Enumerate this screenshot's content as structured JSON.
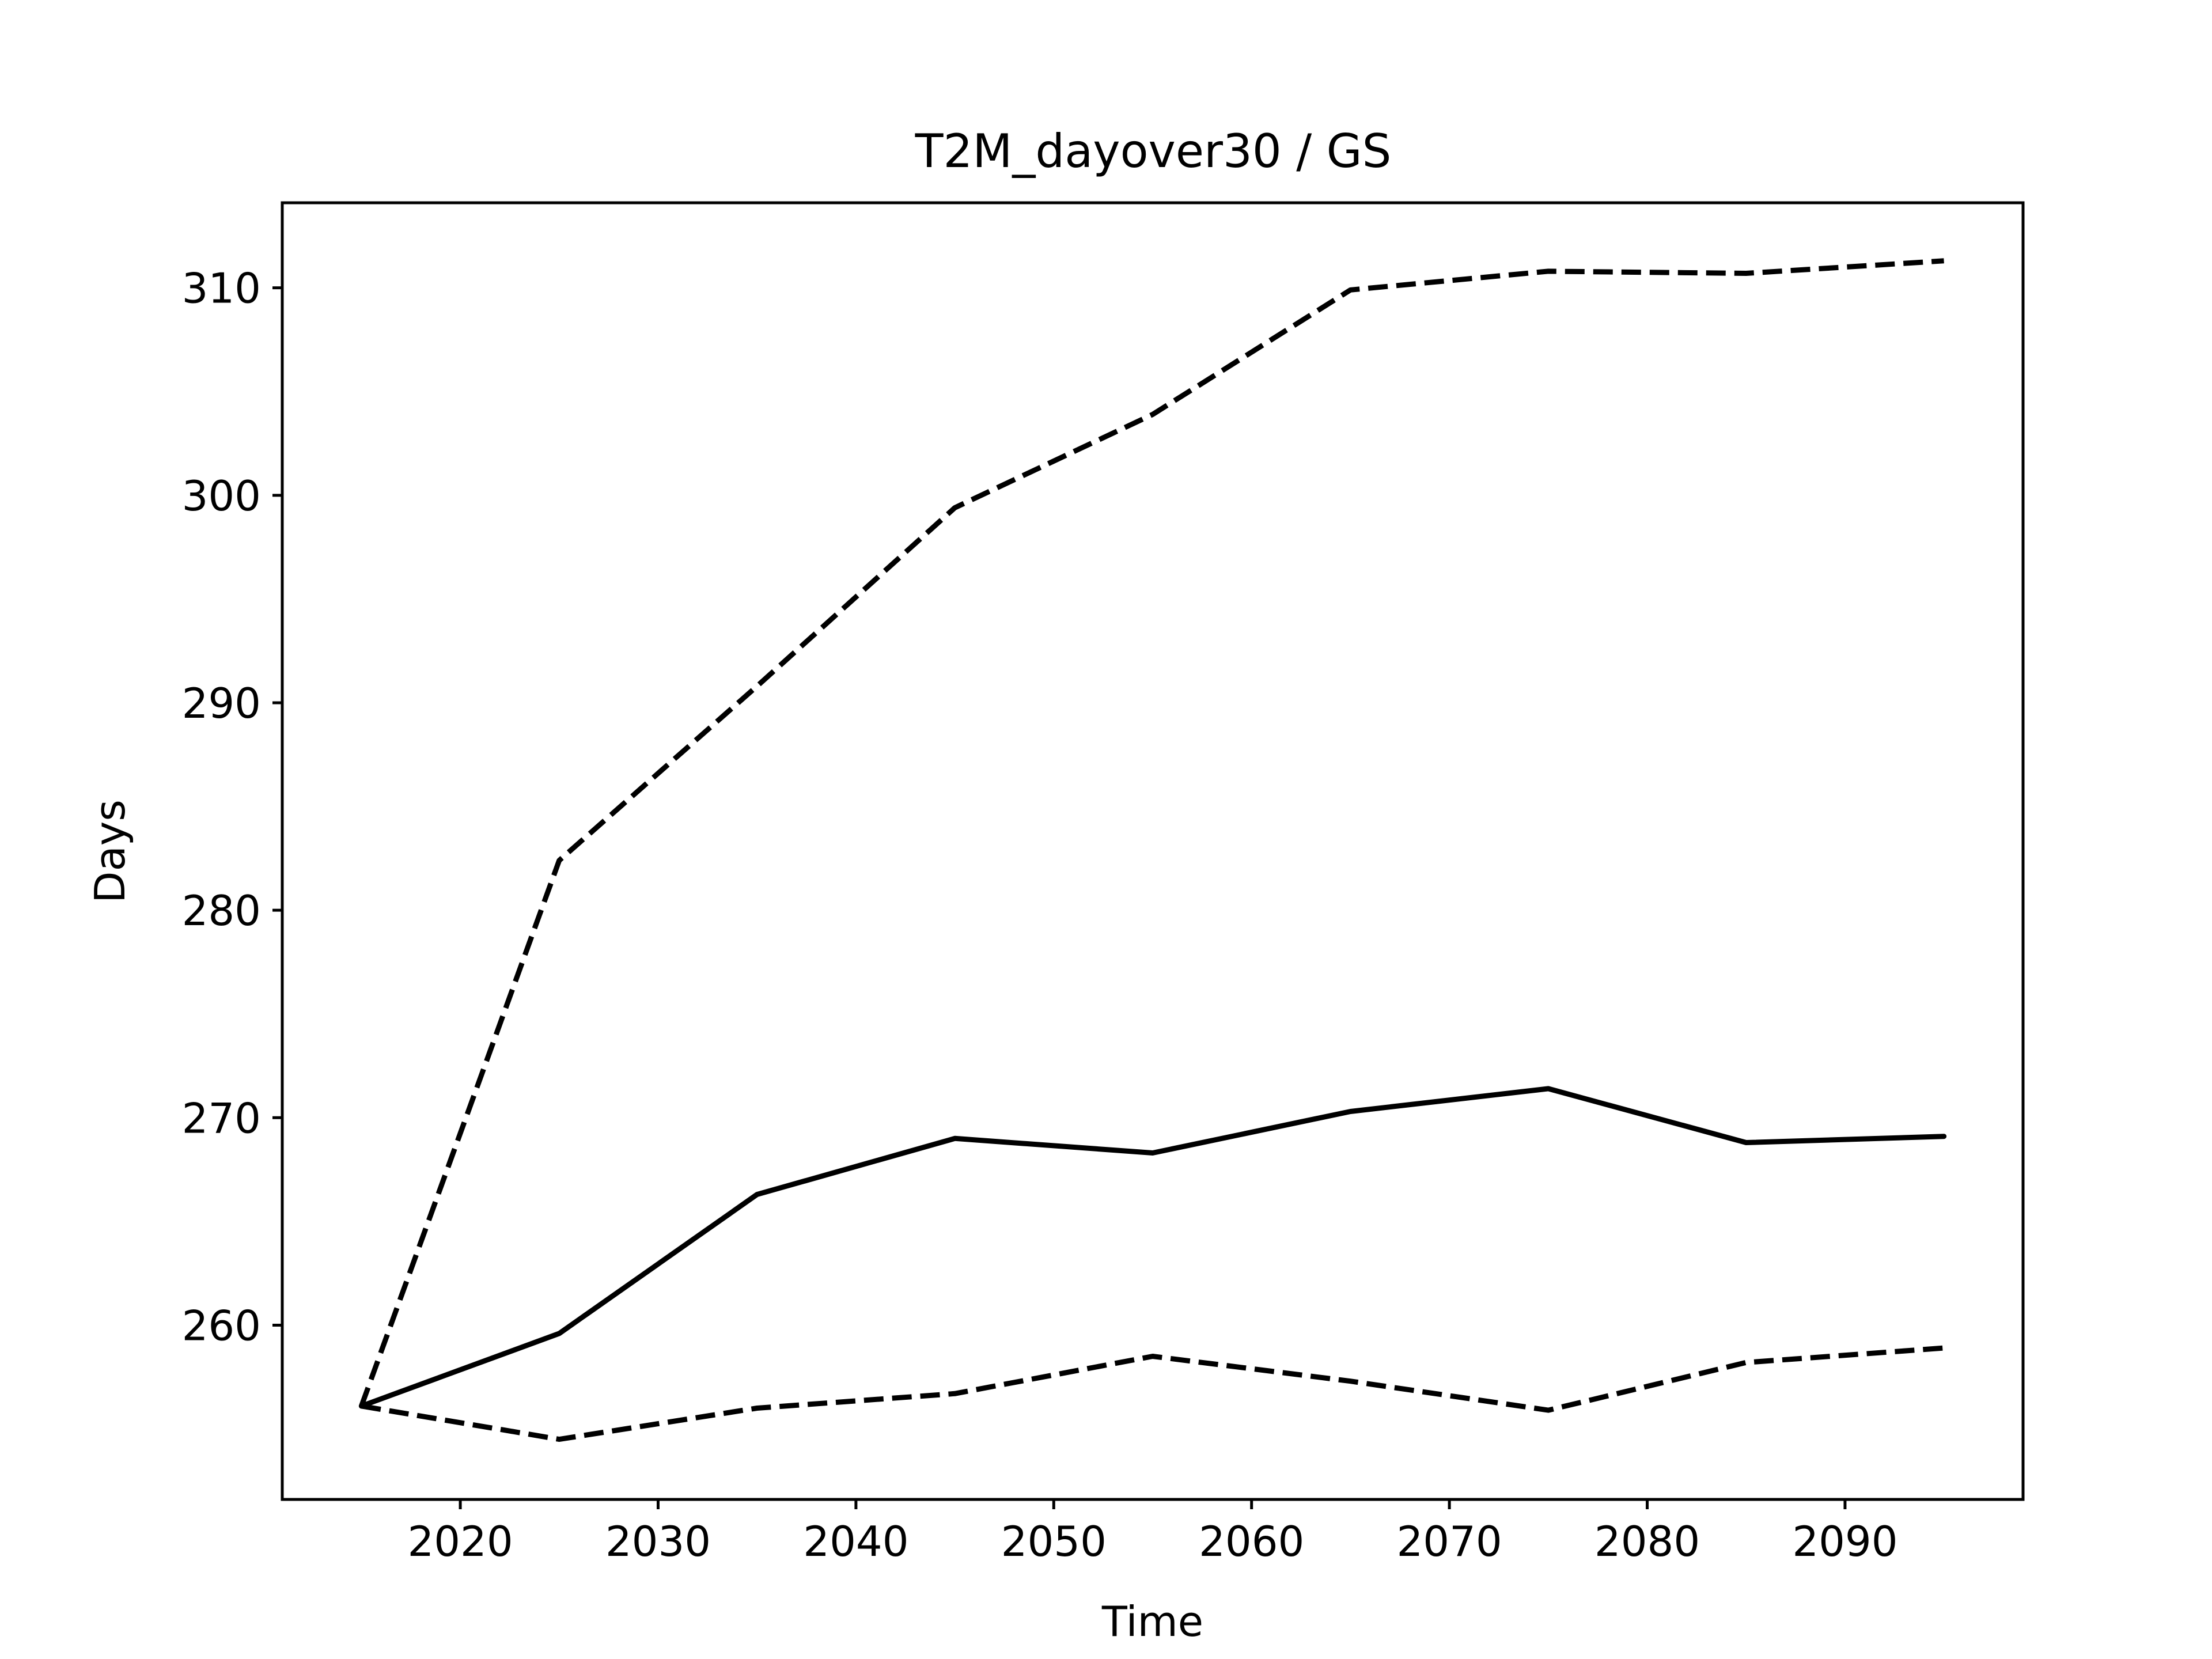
{
  "chart_data": {
    "type": "line",
    "title": "T2M_dayover30 / GS",
    "xlabel": "Time",
    "ylabel": "Days",
    "x": [
      2015,
      2025,
      2035,
      2045,
      2055,
      2065,
      2075,
      2085,
      2095
    ],
    "xlim": [
      2011,
      2099
    ],
    "ylim": [
      251.6,
      314.1
    ],
    "xticks": [
      2020,
      2030,
      2040,
      2050,
      2060,
      2070,
      2080,
      2090
    ],
    "yticks": [
      260,
      270,
      280,
      290,
      300,
      310
    ],
    "grid": false,
    "legend": "none",
    "series": [
      {
        "style": "dashed",
        "color": "#000000",
        "values": [
          256.1,
          282.4,
          290.8,
          299.4,
          303.9,
          309.9,
          310.8,
          310.7,
          311.3
        ]
      },
      {
        "style": "solid",
        "color": "#000000",
        "values": [
          256.1,
          259.6,
          266.3,
          269.0,
          268.3,
          270.3,
          271.4,
          268.8,
          269.1
        ]
      },
      {
        "style": "dashed",
        "color": "#000000",
        "values": [
          256.1,
          254.5,
          256.0,
          256.7,
          258.5,
          257.3,
          255.9,
          258.2,
          258.9
        ]
      }
    ]
  }
}
